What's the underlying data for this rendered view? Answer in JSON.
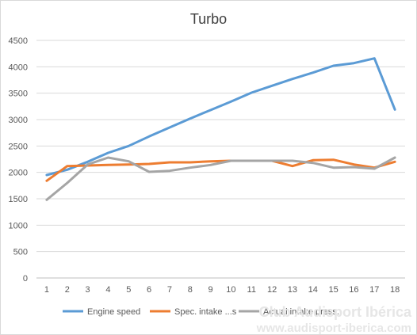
{
  "chart_data": {
    "type": "line",
    "title": "Turbo",
    "categories": [
      "1",
      "2",
      "3",
      "4",
      "5",
      "6",
      "7",
      "8",
      "9",
      "10",
      "11",
      "12",
      "13",
      "14",
      "15",
      "16",
      "17",
      "18"
    ],
    "ylim": [
      0,
      4500
    ],
    "yticks": [
      0,
      500,
      1000,
      1500,
      2000,
      2500,
      3000,
      3500,
      4000,
      4500
    ],
    "grid": "horizontal",
    "legend_position": "bottom",
    "series": [
      {
        "name": "Engine speed",
        "color": "#5b9bd5",
        "values": [
          1950,
          2050,
          2200,
          2370,
          2500,
          2680,
          2850,
          3020,
          3180,
          3340,
          3510,
          3640,
          3770,
          3890,
          4020,
          4070,
          4160,
          3190
        ]
      },
      {
        "name": "Spec. intake ...s",
        "color": "#ed7d31",
        "values": [
          1840,
          2120,
          2130,
          2140,
          2150,
          2160,
          2190,
          2190,
          2210,
          2220,
          2220,
          2220,
          2120,
          2230,
          2240,
          2150,
          2090,
          2200
        ]
      },
      {
        "name": "Actual intake press.",
        "color": "#a5a5a5",
        "values": [
          1480,
          1800,
          2150,
          2280,
          2210,
          2010,
          2030,
          2090,
          2140,
          2220,
          2220,
          2220,
          2220,
          2180,
          2090,
          2100,
          2070,
          2280
        ]
      }
    ]
  },
  "watermark": {
    "line1": "Club Audisport Ibérica",
    "line2": "www.audisport-iberica.com"
  }
}
